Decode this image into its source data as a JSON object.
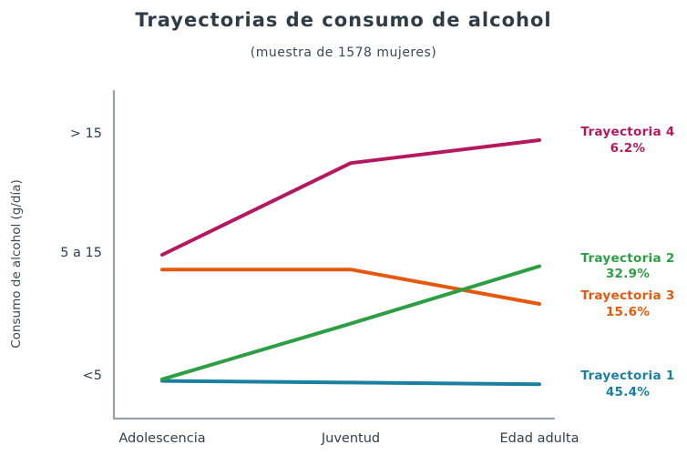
{
  "title": "Trayectorias de consumo de alcohol",
  "subtitle": "(muestra de 1578 mujeres)",
  "chart_data": {
    "type": "line",
    "title": "Trayectorias de consumo de alcohol",
    "subtitle": "(muestra de 1578 mujeres)",
    "sample_size": "1578 mujeres",
    "categories": [
      "Adolescencia",
      "Juventud",
      "Edad adulta"
    ],
    "xlabel": "",
    "ylabel": "Consumo de alcohol (g/día)",
    "ylim": [
      0,
      20
    ],
    "grid": false,
    "legend_position": "right-of-line-ends",
    "yticks": [
      {
        "value": 17.3,
        "label": "> 15"
      },
      {
        "value": 10,
        "label": "5 a 15"
      },
      {
        "value": 2.5,
        "label": "<5"
      }
    ],
    "series": [
      {
        "name": "Trayectoria 4",
        "share": "6.2%",
        "color": "#b4195f",
        "values": [
          10.0,
          15.6,
          17.0
        ]
      },
      {
        "name": "Trayectoria 2",
        "share": "32.9%",
        "color": "#2e9e44",
        "values": [
          2.4,
          5.8,
          9.3
        ]
      },
      {
        "name": "Trayectoria 3",
        "share": "15.6%",
        "color": "#e4590f",
        "values": [
          9.1,
          9.1,
          7.0
        ]
      },
      {
        "name": "Trayectoria 1",
        "share": "45.4%",
        "color": "#1a7fa0",
        "values": [
          2.3,
          2.2,
          2.1
        ]
      }
    ]
  }
}
